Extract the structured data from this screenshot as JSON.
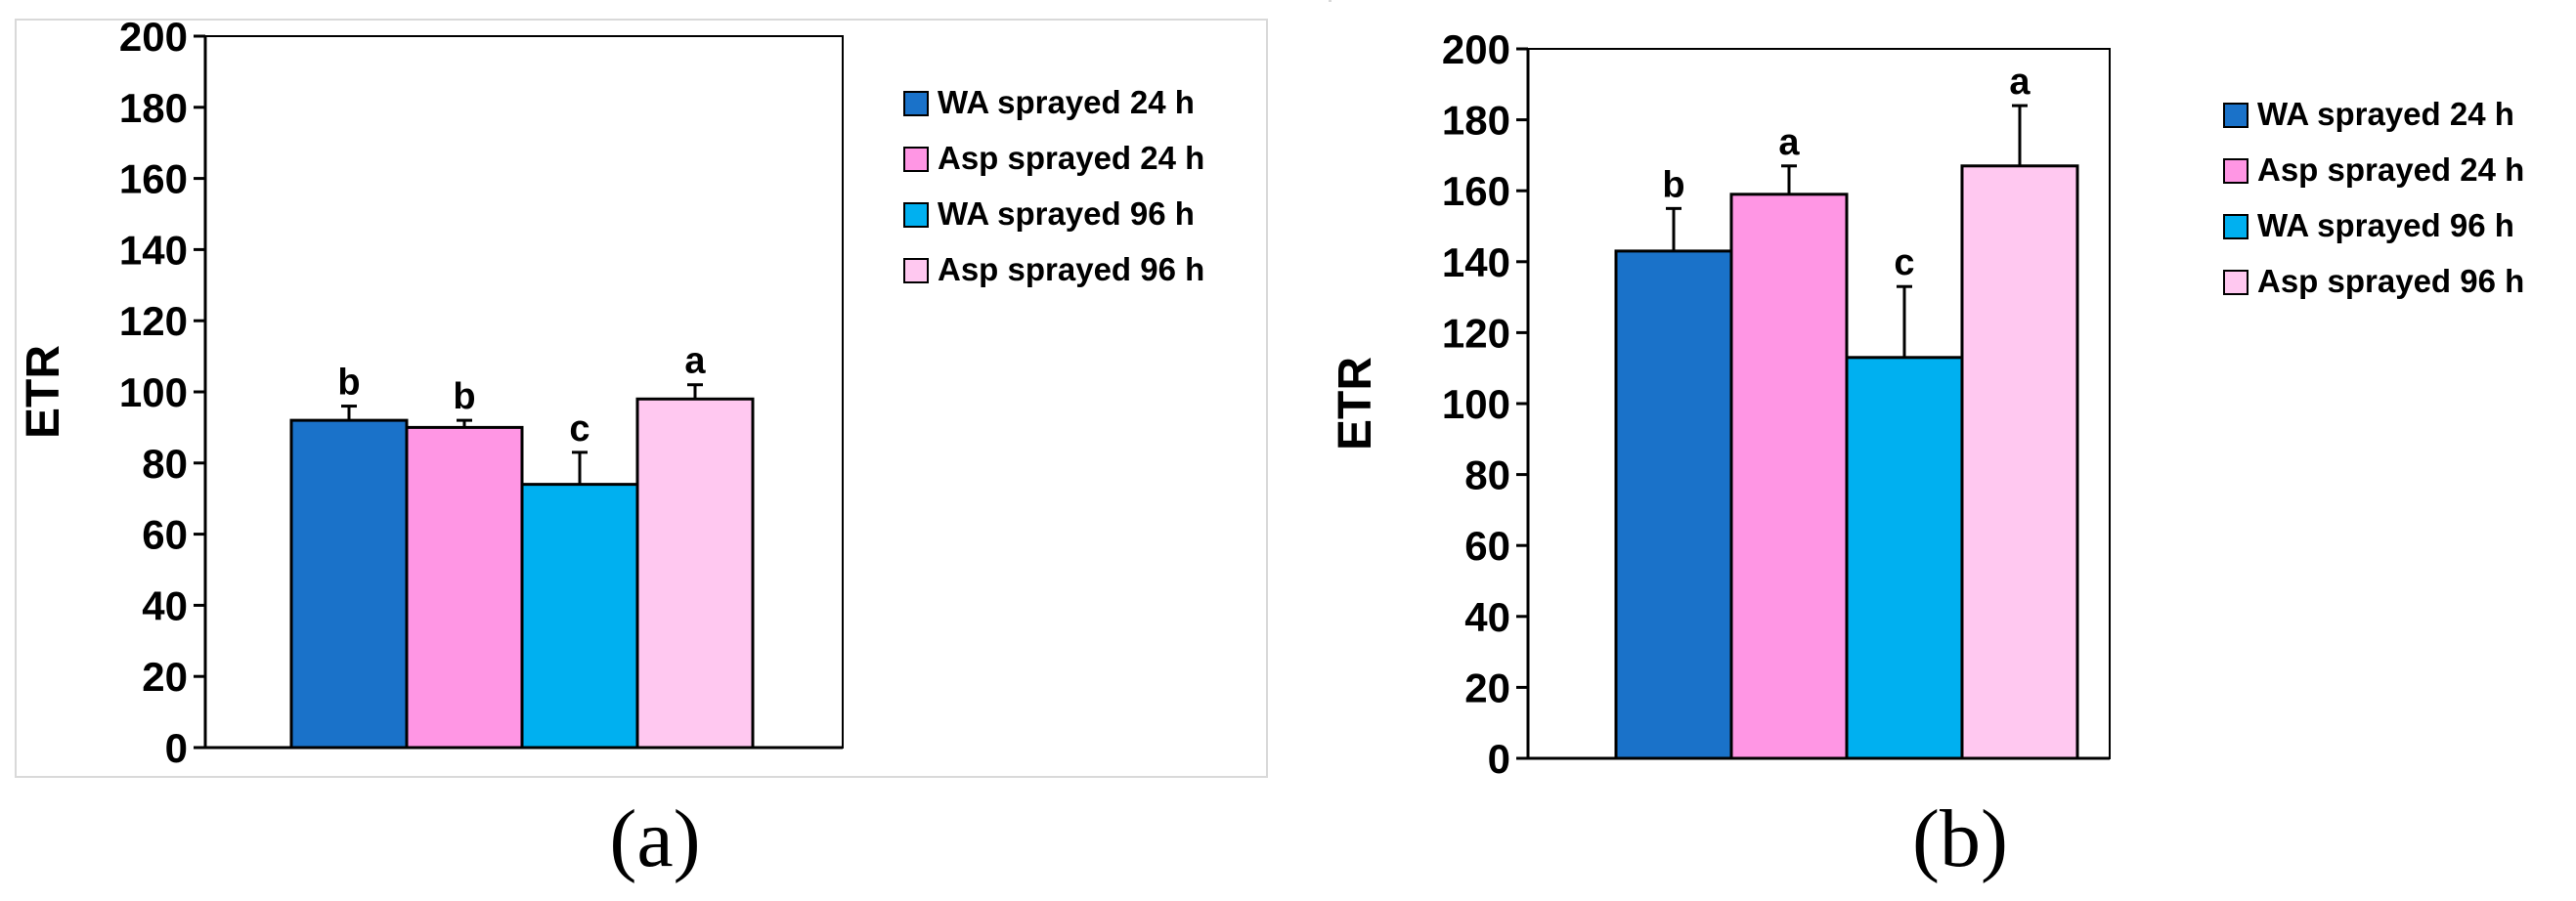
{
  "chart_data": [
    {
      "type": "bar",
      "panel_label": "(a)",
      "ylabel": "ETR",
      "ylim": [
        0,
        200
      ],
      "yticks": [
        "0",
        "20",
        "40",
        "60",
        "80",
        "100",
        "120",
        "140",
        "160",
        "180",
        "200"
      ],
      "grid": false,
      "legend_position": "right",
      "series": [
        {
          "name": "WA sprayed 24 h",
          "value": 92,
          "error": 4,
          "letter": "b",
          "color": "#1a72c9"
        },
        {
          "name": "Asp sprayed 24 h",
          "value": 90,
          "error": 2,
          "letter": "b",
          "color": "#ff96e4"
        },
        {
          "name": "WA sprayed 96 h",
          "value": 74,
          "error": 9,
          "letter": "c",
          "color": "#00b0f0"
        },
        {
          "name": "Asp sprayed 96 h",
          "value": 98,
          "error": 4,
          "letter": "a",
          "color": "#ffc8f0"
        }
      ]
    },
    {
      "type": "bar",
      "panel_label": "(b)",
      "ylabel": "ETR",
      "ylim": [
        0,
        200
      ],
      "yticks": [
        "0",
        "20",
        "40",
        "60",
        "80",
        "100",
        "120",
        "140",
        "160",
        "180",
        "200"
      ],
      "grid": false,
      "legend_position": "right",
      "series": [
        {
          "name": "WA sprayed 24 h",
          "value": 143,
          "error": 12,
          "letter": "b",
          "color": "#1a72c9"
        },
        {
          "name": "Asp sprayed 24 h",
          "value": 159,
          "error": 8,
          "letter": "a",
          "color": "#ff96e4"
        },
        {
          "name": "WA sprayed 96 h",
          "value": 113,
          "error": 20,
          "letter": "c",
          "color": "#00b0f0"
        },
        {
          "name": "Asp sprayed 96 h",
          "value": 167,
          "error": 17,
          "letter": "a",
          "color": "#ffc8f0"
        }
      ]
    }
  ]
}
